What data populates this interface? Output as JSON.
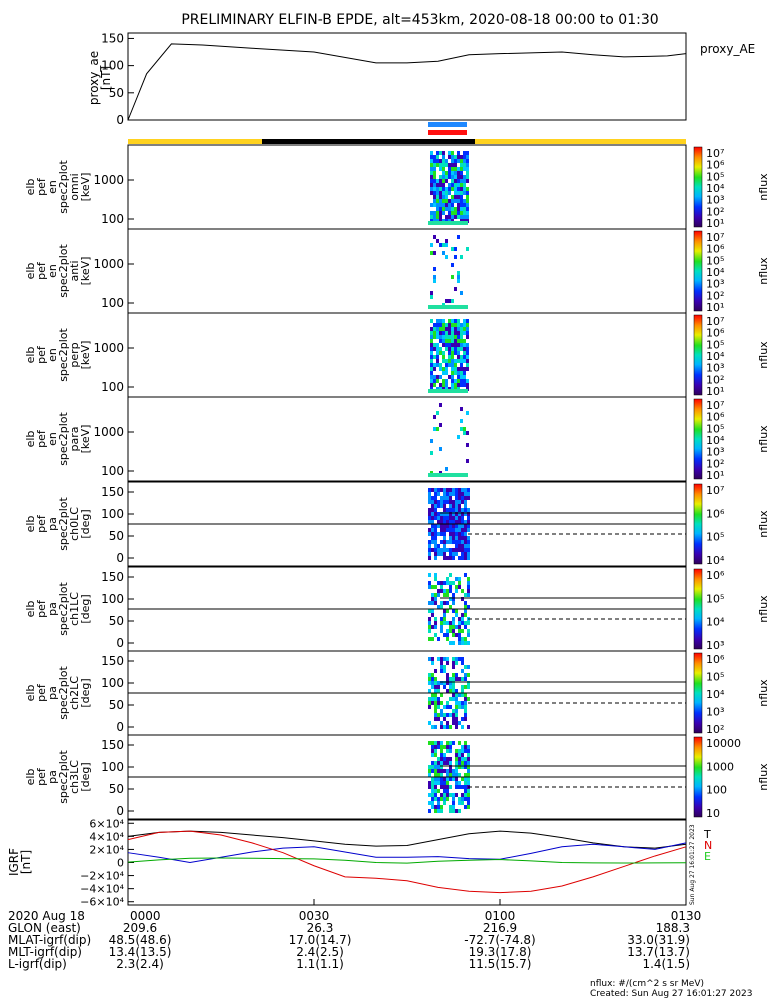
{
  "title": "PRELIMINARY ELFIN-B EPDE, alt=453km, 2020-08-18 00:00 to 01:30",
  "colors": {
    "status_yellow": "#ffd21f",
    "status_black": "#000000",
    "bar_blue": "#1e88ff",
    "bar_red": "#ff1010",
    "bx": "#000000",
    "by": "#0000cc",
    "bz": "#dd0000",
    "bmag_alt": "#00aa00"
  },
  "chart_data": [
    {
      "type": "line",
      "id": "proxy_ae",
      "ylabel_lines": [
        "proxy_ae",
        "[nT]"
      ],
      "legend": "proxy_AE",
      "ylim": [
        0,
        160
      ],
      "yticks": [
        "150",
        "100",
        "50",
        "0"
      ],
      "x_minutes": [
        0,
        3,
        7,
        12,
        20,
        30,
        40,
        45,
        50,
        55,
        60,
        70,
        75,
        80,
        84,
        87,
        90
      ],
      "values": [
        0,
        85,
        140,
        138,
        132,
        125,
        105,
        105,
        108,
        120,
        122,
        125,
        120,
        116,
        117,
        118,
        122
      ]
    },
    {
      "type": "heatmap",
      "id": "omni",
      "ylabel_lines": [
        "elb",
        "pef",
        "en",
        "spec2plot",
        "omni",
        "[keV]"
      ],
      "yticks": [
        "1000",
        "100"
      ],
      "cbar_ticks": [
        "10⁷",
        "10⁶",
        "10⁵",
        "10⁴",
        "10³",
        "10²",
        "10¹"
      ],
      "cbar_label": "nflux"
    },
    {
      "type": "heatmap",
      "id": "anti",
      "ylabel_lines": [
        "elb",
        "pef",
        "en",
        "spec2plot",
        "anti",
        "[keV]"
      ],
      "yticks": [
        "1000",
        "100"
      ],
      "cbar_ticks": [
        "10⁷",
        "10⁶",
        "10⁵",
        "10⁴",
        "10³",
        "10²",
        "10¹"
      ],
      "cbar_label": "nflux"
    },
    {
      "type": "heatmap",
      "id": "perp",
      "ylabel_lines": [
        "elb",
        "pef",
        "en",
        "spec2plot",
        "perp",
        "[keV]"
      ],
      "yticks": [
        "1000",
        "100"
      ],
      "cbar_ticks": [
        "10⁷",
        "10⁶",
        "10⁵",
        "10⁴",
        "10³",
        "10²",
        "10¹"
      ],
      "cbar_label": "nflux"
    },
    {
      "type": "heatmap",
      "id": "para",
      "ylabel_lines": [
        "elb",
        "pef",
        "en",
        "spec2plot",
        "para",
        "[keV]"
      ],
      "yticks": [
        "1000",
        "100"
      ],
      "cbar_ticks": [
        "10⁷",
        "10⁶",
        "10⁵",
        "10⁴",
        "10³",
        "10²",
        "10¹"
      ],
      "cbar_label": "nflux"
    },
    {
      "type": "heatmap",
      "id": "ch0LC",
      "ylabel_lines": [
        "elb",
        "pef",
        "pa",
        "spec2plot",
        "ch0LC",
        "[deg]"
      ],
      "yticks": [
        "150",
        "100",
        "50",
        "0"
      ],
      "cbar_ticks": [
        "10⁷",
        "10⁶",
        "10⁵",
        "10⁴"
      ],
      "cbar_label": "nflux"
    },
    {
      "type": "heatmap",
      "id": "ch1LC",
      "ylabel_lines": [
        "elb",
        "pef",
        "pa",
        "spec2plot",
        "ch1LC",
        "[deg]"
      ],
      "yticks": [
        "150",
        "100",
        "50",
        "0"
      ],
      "cbar_ticks": [
        "10⁶",
        "10⁵",
        "10⁴",
        "10³"
      ],
      "cbar_label": "nflux"
    },
    {
      "type": "heatmap",
      "id": "ch2LC",
      "ylabel_lines": [
        "elb",
        "pef",
        "pa",
        "spec2plot",
        "ch2LC",
        "[deg]"
      ],
      "yticks": [
        "150",
        "100",
        "50",
        "0"
      ],
      "cbar_ticks": [
        "10⁶",
        "10⁵",
        "10⁴",
        "10³",
        "10²"
      ],
      "cbar_label": "nflux"
    },
    {
      "type": "heatmap",
      "id": "ch3LC",
      "ylabel_lines": [
        "elb",
        "pef",
        "pa",
        "spec2plot",
        "ch3LC",
        "[deg]"
      ],
      "yticks": [
        "150",
        "100",
        "50",
        "0"
      ],
      "cbar_ticks": [
        "10000",
        "1000",
        "100",
        "10"
      ],
      "cbar_label": "nflux"
    },
    {
      "type": "line",
      "id": "igrf",
      "ylabel_lines": [
        "IGRF",
        "[nT]"
      ],
      "yticks": [
        "6×10⁴",
        "4×10⁴",
        "2×10⁴",
        "0",
        "−2×10⁴",
        "−4×10⁴",
        "−6×10⁴"
      ],
      "legend": [
        "T",
        "N",
        "E"
      ],
      "x_minutes": [
        0,
        5,
        10,
        15,
        20,
        25,
        30,
        35,
        40,
        45,
        50,
        55,
        60,
        65,
        70,
        75,
        80,
        85,
        90
      ],
      "series": [
        {
          "values": [
            40000,
            46000,
            48000,
            46000,
            42000,
            38000,
            33000,
            28000,
            25000,
            26000,
            35000,
            44000,
            48000,
            45000,
            38000,
            30000,
            24000,
            22000,
            28000
          ]
        },
        {
          "values": [
            15000,
            8000,
            0,
            8000,
            16000,
            22000,
            24000,
            16000,
            8000,
            8000,
            9000,
            6000,
            5000,
            14000,
            24000,
            28000,
            24000,
            20000,
            30000
          ]
        },
        {
          "values": [
            35000,
            46000,
            48000,
            42000,
            30000,
            15000,
            -5000,
            -22000,
            -24000,
            -28000,
            -38000,
            -44000,
            -46000,
            -44000,
            -36000,
            -22000,
            -6000,
            10000,
            24000
          ]
        },
        {
          "values": [
            500,
            4000,
            6500,
            6800,
            6500,
            6000,
            5500,
            3500,
            0,
            -1000,
            2000,
            3500,
            4500,
            2500,
            0,
            -500,
            -800,
            -600,
            -400
          ]
        }
      ]
    }
  ],
  "timeline": {
    "blue_bar_label": "",
    "xtick_labels": [
      "0000",
      "0030",
      "0100",
      "0130"
    ]
  },
  "bottom_table": {
    "date_label": "2020 Aug 18",
    "rows": [
      {
        "label": "GLON (east)",
        "values": [
          "209.6",
          "26.3",
          "216.9",
          "188.3"
        ]
      },
      {
        "label": "MLAT-igrf(dip)",
        "values": [
          "48.5(48.6)",
          "17.0(14.7)",
          "-72.7(-74.8)",
          "33.0(31.9)"
        ]
      },
      {
        "label": "MLT-igrf(dip)",
        "values": [
          "13.4(13.5)",
          "2.4(2.5)",
          "19.3(17.8)",
          "13.7(13.7)"
        ]
      },
      {
        "label": "L-igrf(dip)",
        "values": [
          "2.3(2.4)",
          "1.1(1.1)",
          "11.5(15.7)",
          "1.4(1.5)"
        ]
      }
    ]
  },
  "footer": {
    "units": "nflux: #/(cm^2 s sr MeV)",
    "created": "Created: Sun Aug 27 16:01:27 2023",
    "side_stamp": "Sun Aug 27 16:01:27 2023"
  }
}
